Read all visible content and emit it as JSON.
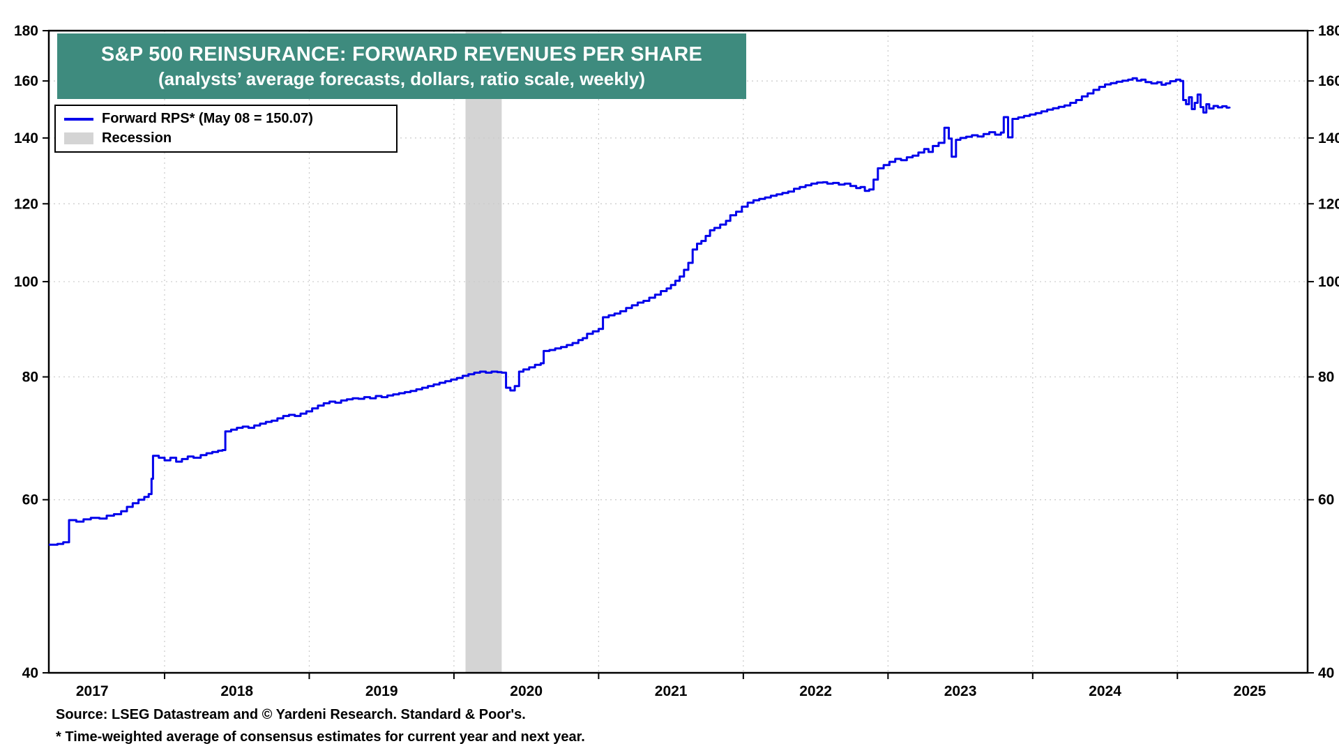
{
  "chart_data": {
    "type": "line",
    "title": "S&P 500 REINSURANCE: FORWARD REVENUES PER SHARE",
    "subtitle": "(analysts’ average forecasts, dollars, ratio scale, weekly)",
    "title_bg": "#3E8B7E",
    "title_color": "#ffffff",
    "legend": [
      {
        "label": "Forward RPS* (May 08 = 150.07)",
        "type": "line",
        "color": "#0000EB"
      },
      {
        "label": "Recession",
        "type": "band",
        "color": "#D4D4D4"
      }
    ],
    "source": "Source: LSEG Datastream and © Yardeni Research. Standard & Poor's.",
    "footnote": "* Time-weighted average of consensus estimates for current year and next year.",
    "x_domain": [
      2017.2,
      2025.9
    ],
    "x_year_ticks": [
      2017,
      2018,
      2019,
      2020,
      2021,
      2022,
      2023,
      2024,
      2025
    ],
    "y_scale": "log",
    "y_domain": [
      40,
      180
    ],
    "y_ticks": [
      40,
      60,
      80,
      100,
      120,
      140,
      160,
      180
    ],
    "recession_bands": [
      [
        2020.08,
        2020.33
      ]
    ],
    "line_color": "#0000EB",
    "band_color": "#D4D4D4",
    "grid_color": "#c9c9c9",
    "frame_color": "#000000",
    "last_point_label": "May 08 = 150.07",
    "series": [
      {
        "name": "Forward RPS",
        "points": [
          [
            2017.2,
            54.0
          ],
          [
            2017.26,
            54.1
          ],
          [
            2017.3,
            54.3
          ],
          [
            2017.34,
            57.2
          ],
          [
            2017.39,
            57.0
          ],
          [
            2017.44,
            57.3
          ],
          [
            2017.49,
            57.5
          ],
          [
            2017.55,
            57.4
          ],
          [
            2017.6,
            57.8
          ],
          [
            2017.65,
            58.0
          ],
          [
            2017.7,
            58.4
          ],
          [
            2017.74,
            59.0
          ],
          [
            2017.78,
            59.5
          ],
          [
            2017.82,
            60.0
          ],
          [
            2017.86,
            60.4
          ],
          [
            2017.89,
            60.8
          ],
          [
            2017.91,
            63.0
          ],
          [
            2017.92,
            66.5
          ],
          [
            2017.96,
            66.2
          ],
          [
            2018.0,
            65.8
          ],
          [
            2018.04,
            66.2
          ],
          [
            2018.08,
            65.6
          ],
          [
            2018.12,
            66.0
          ],
          [
            2018.16,
            66.4
          ],
          [
            2018.2,
            66.2
          ],
          [
            2018.25,
            66.6
          ],
          [
            2018.29,
            66.9
          ],
          [
            2018.33,
            67.1
          ],
          [
            2018.37,
            67.3
          ],
          [
            2018.4,
            67.4
          ],
          [
            2018.42,
            70.4
          ],
          [
            2018.46,
            70.7
          ],
          [
            2018.5,
            71.0
          ],
          [
            2018.54,
            71.2
          ],
          [
            2018.58,
            71.0
          ],
          [
            2018.62,
            71.4
          ],
          [
            2018.66,
            71.7
          ],
          [
            2018.7,
            72.0
          ],
          [
            2018.74,
            72.2
          ],
          [
            2018.78,
            72.6
          ],
          [
            2018.82,
            73.0
          ],
          [
            2018.86,
            73.2
          ],
          [
            2018.9,
            73.0
          ],
          [
            2018.94,
            73.4
          ],
          [
            2018.98,
            73.8
          ],
          [
            2019.02,
            74.3
          ],
          [
            2019.06,
            74.8
          ],
          [
            2019.1,
            75.2
          ],
          [
            2019.14,
            75.5
          ],
          [
            2019.18,
            75.3
          ],
          [
            2019.22,
            75.7
          ],
          [
            2019.26,
            75.9
          ],
          [
            2019.3,
            76.1
          ],
          [
            2019.34,
            76.0
          ],
          [
            2019.38,
            76.3
          ],
          [
            2019.42,
            76.1
          ],
          [
            2019.46,
            76.5
          ],
          [
            2019.5,
            76.3
          ],
          [
            2019.54,
            76.6
          ],
          [
            2019.58,
            76.8
          ],
          [
            2019.62,
            77.0
          ],
          [
            2019.66,
            77.2
          ],
          [
            2019.7,
            77.4
          ],
          [
            2019.74,
            77.7
          ],
          [
            2019.78,
            78.0
          ],
          [
            2019.82,
            78.3
          ],
          [
            2019.86,
            78.6
          ],
          [
            2019.9,
            78.9
          ],
          [
            2019.94,
            79.2
          ],
          [
            2019.98,
            79.5
          ],
          [
            2020.02,
            79.8
          ],
          [
            2020.06,
            80.2
          ],
          [
            2020.1,
            80.5
          ],
          [
            2020.14,
            80.8
          ],
          [
            2020.18,
            81.0
          ],
          [
            2020.22,
            80.8
          ],
          [
            2020.26,
            81.0
          ],
          [
            2020.3,
            80.9
          ],
          [
            2020.33,
            80.8
          ],
          [
            2020.36,
            78.0
          ],
          [
            2020.39,
            77.5
          ],
          [
            2020.42,
            78.3
          ],
          [
            2020.45,
            81.0
          ],
          [
            2020.48,
            81.4
          ],
          [
            2020.52,
            81.8
          ],
          [
            2020.56,
            82.3
          ],
          [
            2020.6,
            82.6
          ],
          [
            2020.62,
            85.0
          ],
          [
            2020.66,
            85.2
          ],
          [
            2020.7,
            85.5
          ],
          [
            2020.74,
            85.8
          ],
          [
            2020.78,
            86.2
          ],
          [
            2020.82,
            86.6
          ],
          [
            2020.86,
            87.2
          ],
          [
            2020.89,
            87.6
          ],
          [
            2020.92,
            88.5
          ],
          [
            2020.96,
            89.0
          ],
          [
            2021.0,
            89.5
          ],
          [
            2021.03,
            92.0
          ],
          [
            2021.07,
            92.4
          ],
          [
            2021.11,
            92.8
          ],
          [
            2021.15,
            93.3
          ],
          [
            2021.19,
            94.0
          ],
          [
            2021.23,
            94.6
          ],
          [
            2021.27,
            95.2
          ],
          [
            2021.31,
            95.6
          ],
          [
            2021.35,
            96.3
          ],
          [
            2021.39,
            97.0
          ],
          [
            2021.43,
            97.8
          ],
          [
            2021.47,
            98.4
          ],
          [
            2021.5,
            99.2
          ],
          [
            2021.53,
            100.2
          ],
          [
            2021.56,
            101.2
          ],
          [
            2021.59,
            102.8
          ],
          [
            2021.62,
            104.5
          ],
          [
            2021.65,
            107.8
          ],
          [
            2021.68,
            109.3
          ],
          [
            2021.71,
            110.0
          ],
          [
            2021.74,
            111.3
          ],
          [
            2021.77,
            112.8
          ],
          [
            2021.8,
            113.4
          ],
          [
            2021.84,
            114.3
          ],
          [
            2021.88,
            115.3
          ],
          [
            2021.91,
            116.8
          ],
          [
            2021.95,
            117.8
          ],
          [
            2021.99,
            119.2
          ],
          [
            2022.03,
            120.3
          ],
          [
            2022.07,
            121.0
          ],
          [
            2022.11,
            121.4
          ],
          [
            2022.15,
            121.8
          ],
          [
            2022.19,
            122.3
          ],
          [
            2022.23,
            122.7
          ],
          [
            2022.27,
            123.1
          ],
          [
            2022.31,
            123.5
          ],
          [
            2022.35,
            124.3
          ],
          [
            2022.39,
            124.8
          ],
          [
            2022.43,
            125.3
          ],
          [
            2022.47,
            125.8
          ],
          [
            2022.51,
            126.1
          ],
          [
            2022.55,
            126.2
          ],
          [
            2022.58,
            125.8
          ],
          [
            2022.62,
            126.0
          ],
          [
            2022.66,
            125.5
          ],
          [
            2022.7,
            125.8
          ],
          [
            2022.74,
            125.1
          ],
          [
            2022.78,
            124.5
          ],
          [
            2022.81,
            124.8
          ],
          [
            2022.84,
            123.7
          ],
          [
            2022.87,
            124.1
          ],
          [
            2022.9,
            127.0
          ],
          [
            2022.93,
            130.4
          ],
          [
            2022.97,
            131.4
          ],
          [
            2023.01,
            132.4
          ],
          [
            2023.05,
            133.3
          ],
          [
            2023.09,
            132.9
          ],
          [
            2023.13,
            133.8
          ],
          [
            2023.17,
            134.3
          ],
          [
            2023.21,
            135.3
          ],
          [
            2023.25,
            136.4
          ],
          [
            2023.28,
            135.5
          ],
          [
            2023.31,
            137.4
          ],
          [
            2023.35,
            138.4
          ],
          [
            2023.39,
            143.4
          ],
          [
            2023.42,
            139.8
          ],
          [
            2023.44,
            134.0
          ],
          [
            2023.47,
            139.4
          ],
          [
            2023.5,
            140.0
          ],
          [
            2023.54,
            140.4
          ],
          [
            2023.58,
            140.9
          ],
          [
            2023.62,
            140.5
          ],
          [
            2023.66,
            141.3
          ],
          [
            2023.7,
            141.9
          ],
          [
            2023.74,
            141.1
          ],
          [
            2023.78,
            141.8
          ],
          [
            2023.8,
            147.0
          ],
          [
            2023.83,
            140.2
          ],
          [
            2023.86,
            146.4
          ],
          [
            2023.9,
            146.9
          ],
          [
            2023.94,
            147.4
          ],
          [
            2023.98,
            147.9
          ],
          [
            2024.02,
            148.4
          ],
          [
            2024.06,
            149.0
          ],
          [
            2024.1,
            149.6
          ],
          [
            2024.14,
            150.1
          ],
          [
            2024.18,
            150.6
          ],
          [
            2024.22,
            151.1
          ],
          [
            2024.26,
            152.0
          ],
          [
            2024.3,
            153.0
          ],
          [
            2024.34,
            154.3
          ],
          [
            2024.38,
            155.4
          ],
          [
            2024.42,
            156.7
          ],
          [
            2024.46,
            157.8
          ],
          [
            2024.5,
            158.7
          ],
          [
            2024.54,
            159.2
          ],
          [
            2024.58,
            159.7
          ],
          [
            2024.62,
            160.1
          ],
          [
            2024.66,
            160.5
          ],
          [
            2024.69,
            161.0
          ],
          [
            2024.72,
            160.1
          ],
          [
            2024.75,
            160.5
          ],
          [
            2024.78,
            159.6
          ],
          [
            2024.82,
            159.1
          ],
          [
            2024.86,
            159.5
          ],
          [
            2024.89,
            158.6
          ],
          [
            2024.92,
            159.1
          ],
          [
            2024.95,
            159.9
          ],
          [
            2024.99,
            160.5
          ],
          [
            2025.02,
            160.0
          ],
          [
            2025.04,
            153.0
          ],
          [
            2025.06,
            151.5
          ],
          [
            2025.08,
            154.0
          ],
          [
            2025.1,
            149.8
          ],
          [
            2025.12,
            152.0
          ],
          [
            2025.14,
            155.0
          ],
          [
            2025.16,
            150.5
          ],
          [
            2025.18,
            148.6
          ],
          [
            2025.2,
            151.5
          ],
          [
            2025.22,
            150.0
          ],
          [
            2025.25,
            150.9
          ],
          [
            2025.28,
            150.4
          ],
          [
            2025.31,
            150.8
          ],
          [
            2025.34,
            150.3
          ],
          [
            2025.36,
            150.07
          ]
        ]
      }
    ]
  }
}
